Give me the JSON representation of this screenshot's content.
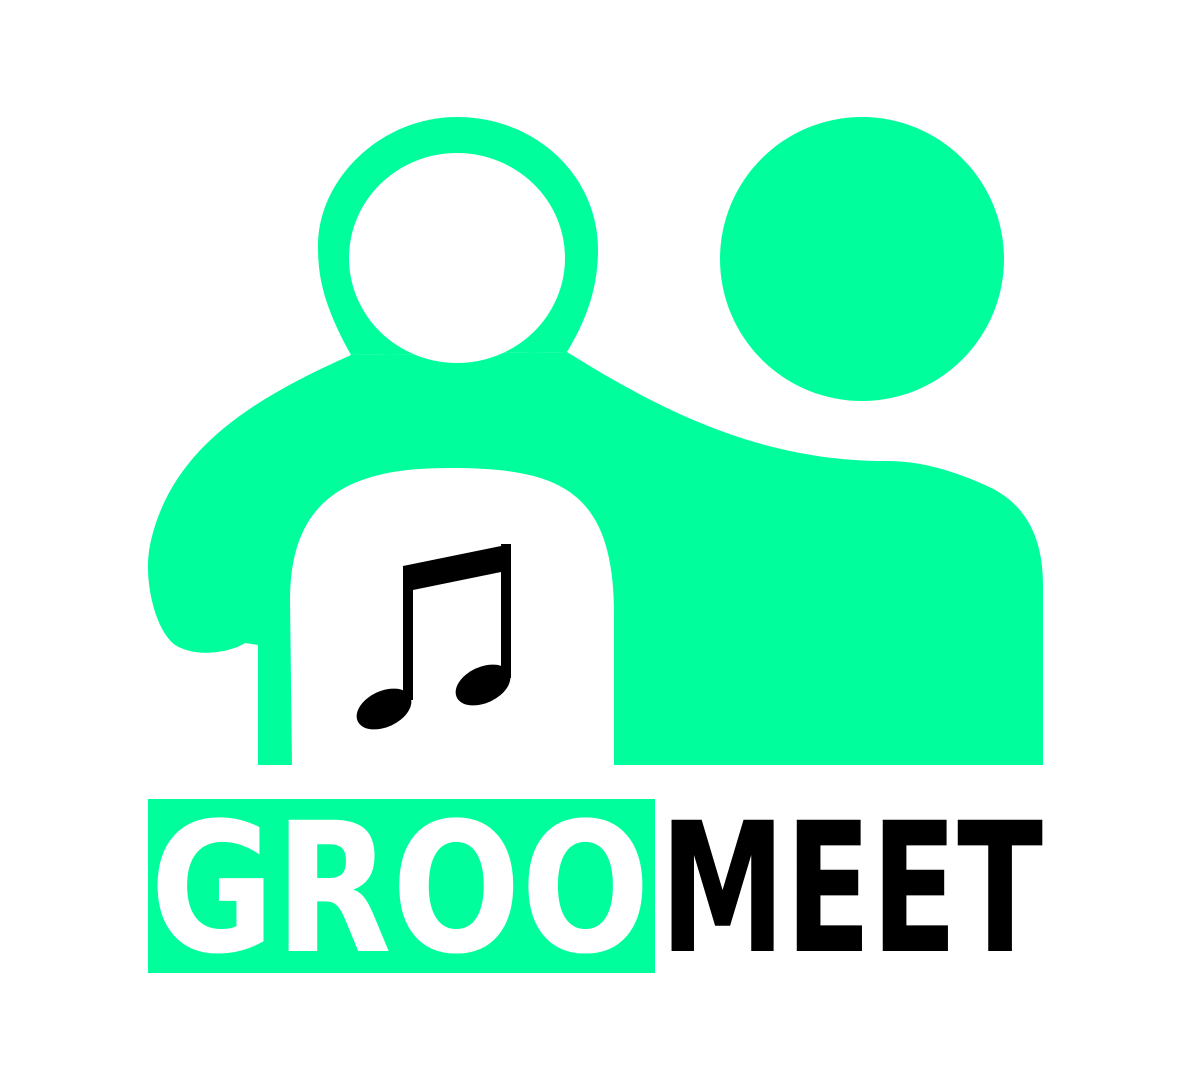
{
  "logo": {
    "part1": "GROO",
    "part2": "MEET"
  }
}
